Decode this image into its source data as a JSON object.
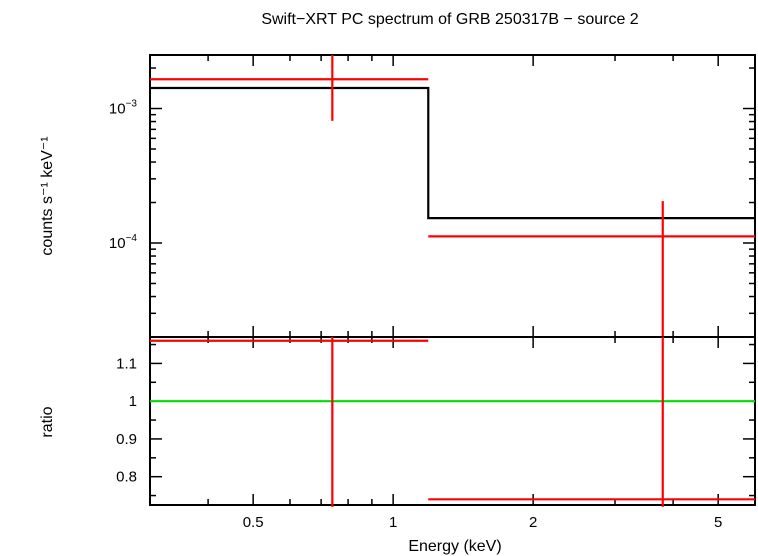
{
  "chart_data": [
    {
      "type": "scatter",
      "title": "Swift−XRT PC spectrum of GRB 250317B − source 2",
      "xlabel": "",
      "ylabel": "counts s⁻¹ keV⁻¹",
      "xscale": "log",
      "yscale": "log",
      "xlim": [
        0.3,
        6.0
      ],
      "ylim": [
        2e-05,
        0.0025
      ],
      "ytick_labels": [
        {
          "value": 0.001,
          "base": "10",
          "exp": "−3"
        },
        {
          "value": 0.0001,
          "base": "10",
          "exp": "−4"
        }
      ],
      "series": [
        {
          "role": "data",
          "color": "#ff0000",
          "points": [
            {
              "x": 0.74,
              "x_lo": 0.3,
              "x_hi": 1.19,
              "y": 0.00165,
              "y_lo": 0.00081,
              "y_hi": 0.0025
            },
            {
              "x": 3.8,
              "x_lo": 1.19,
              "x_hi": 6.0,
              "y": 0.000112,
              "y_lo": 2e-05,
              "y_hi": 0.000205
            }
          ]
        },
        {
          "role": "model",
          "color": "#000000",
          "steps": [
            {
              "x_lo": 0.3,
              "x_hi": 1.19,
              "y": 0.00142
            },
            {
              "x_lo": 1.19,
              "x_hi": 6.0,
              "y": 0.000153
            }
          ]
        }
      ]
    },
    {
      "type": "scatter",
      "xlabel": "Energy (keV)",
      "ylabel": "ratio",
      "xscale": "log",
      "xlim": [
        0.3,
        6.0
      ],
      "ylim": [
        0.725,
        1.17
      ],
      "xticks": [
        0.5,
        1,
        2,
        5
      ],
      "xtick_labels": [
        "0.5",
        "1",
        "2",
        "5"
      ],
      "yticks": [
        0.8,
        0.9,
        1.0,
        1.1
      ],
      "ytick_labels": [
        "0.8",
        "0.9",
        "1",
        "1.1"
      ],
      "reference_line": {
        "y": 1.0,
        "color": "#00dd00"
      },
      "series": [
        {
          "role": "ratio",
          "color": "#ff0000",
          "points": [
            {
              "x": 0.74,
              "x_lo": 0.3,
              "x_hi": 1.19,
              "y": 1.16,
              "y_lo": 0.72,
              "y_hi": 1.17
            },
            {
              "x": 3.8,
              "x_lo": 1.19,
              "x_hi": 6.0,
              "y": 0.74,
              "y_lo": 0.72,
              "y_hi": 1.17
            }
          ]
        }
      ]
    }
  ]
}
